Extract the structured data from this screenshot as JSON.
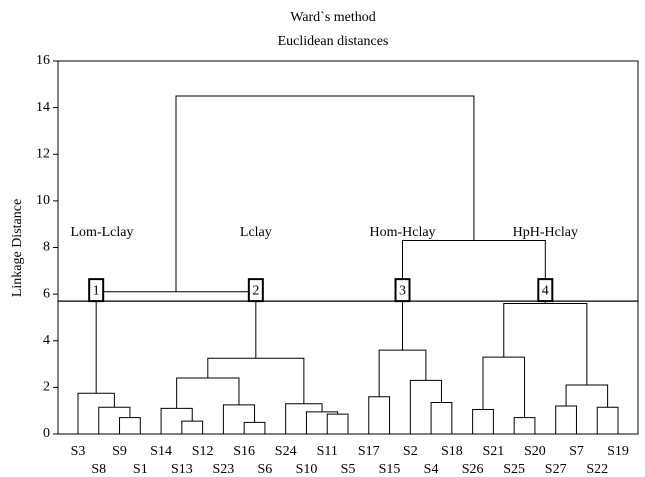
{
  "chart_data": {
    "type": "dendrogram",
    "title": "Ward`s method",
    "subtitle": "Euclidean distances",
    "y_label": "Linkage Distance",
    "ylim": [
      0,
      16
    ],
    "yticks": [
      0,
      2,
      4,
      6,
      8,
      10,
      12,
      14,
      16
    ],
    "leaves": [
      "S3",
      "S8",
      "S9",
      "S1",
      "S14",
      "S13",
      "S12",
      "S23",
      "S16",
      "S6",
      "S24",
      "S10",
      "S11",
      "S5",
      "S17",
      "S15",
      "S2",
      "S4",
      "S18",
      "S26",
      "S21",
      "S25",
      "S20",
      "S27",
      "S7",
      "S22",
      "S19"
    ],
    "merges": [
      {
        "left": 2,
        "right": 3,
        "height": 0.7
      },
      {
        "left": 1,
        "right": 27,
        "height": 1.15
      },
      {
        "left": 0,
        "right": 28,
        "height": 1.75
      },
      {
        "left": 5,
        "right": 6,
        "height": 0.55
      },
      {
        "left": 4,
        "right": 30,
        "height": 1.1
      },
      {
        "left": 8,
        "right": 9,
        "height": 0.5
      },
      {
        "left": 7,
        "right": 32,
        "height": 1.25
      },
      {
        "left": 31,
        "right": 33,
        "height": 2.4
      },
      {
        "left": 12,
        "right": 13,
        "height": 0.85
      },
      {
        "left": 11,
        "right": 35,
        "height": 0.95
      },
      {
        "left": 10,
        "right": 36,
        "height": 1.3
      },
      {
        "left": 34,
        "right": 37,
        "height": 3.25
      },
      {
        "left": 29,
        "right": 38,
        "height": 6.1
      },
      {
        "left": 14,
        "right": 15,
        "height": 1.6
      },
      {
        "left": 17,
        "right": 18,
        "height": 1.35
      },
      {
        "left": 16,
        "right": 41,
        "height": 2.3
      },
      {
        "left": 40,
        "right": 42,
        "height": 3.6
      },
      {
        "left": 19,
        "right": 20,
        "height": 1.05
      },
      {
        "left": 21,
        "right": 22,
        "height": 0.7
      },
      {
        "left": 44,
        "right": 45,
        "height": 3.3
      },
      {
        "left": 23,
        "right": 24,
        "height": 1.2
      },
      {
        "left": 25,
        "right": 26,
        "height": 1.15
      },
      {
        "left": 47,
        "right": 48,
        "height": 2.1
      },
      {
        "left": 46,
        "right": 49,
        "height": 5.6
      },
      {
        "left": 43,
        "right": 50,
        "height": 8.3
      },
      {
        "left": 39,
        "right": 51,
        "height": 14.5
      }
    ],
    "threshold": 5.7,
    "clusters": [
      {
        "name": "Lom-Lclay",
        "number": "1"
      },
      {
        "name": "Lclay",
        "number": "2"
      },
      {
        "name": "Hom-Hclay",
        "number": "3"
      },
      {
        "name": "HpH-Hclay",
        "number": "4"
      }
    ],
    "color": "#000000"
  }
}
